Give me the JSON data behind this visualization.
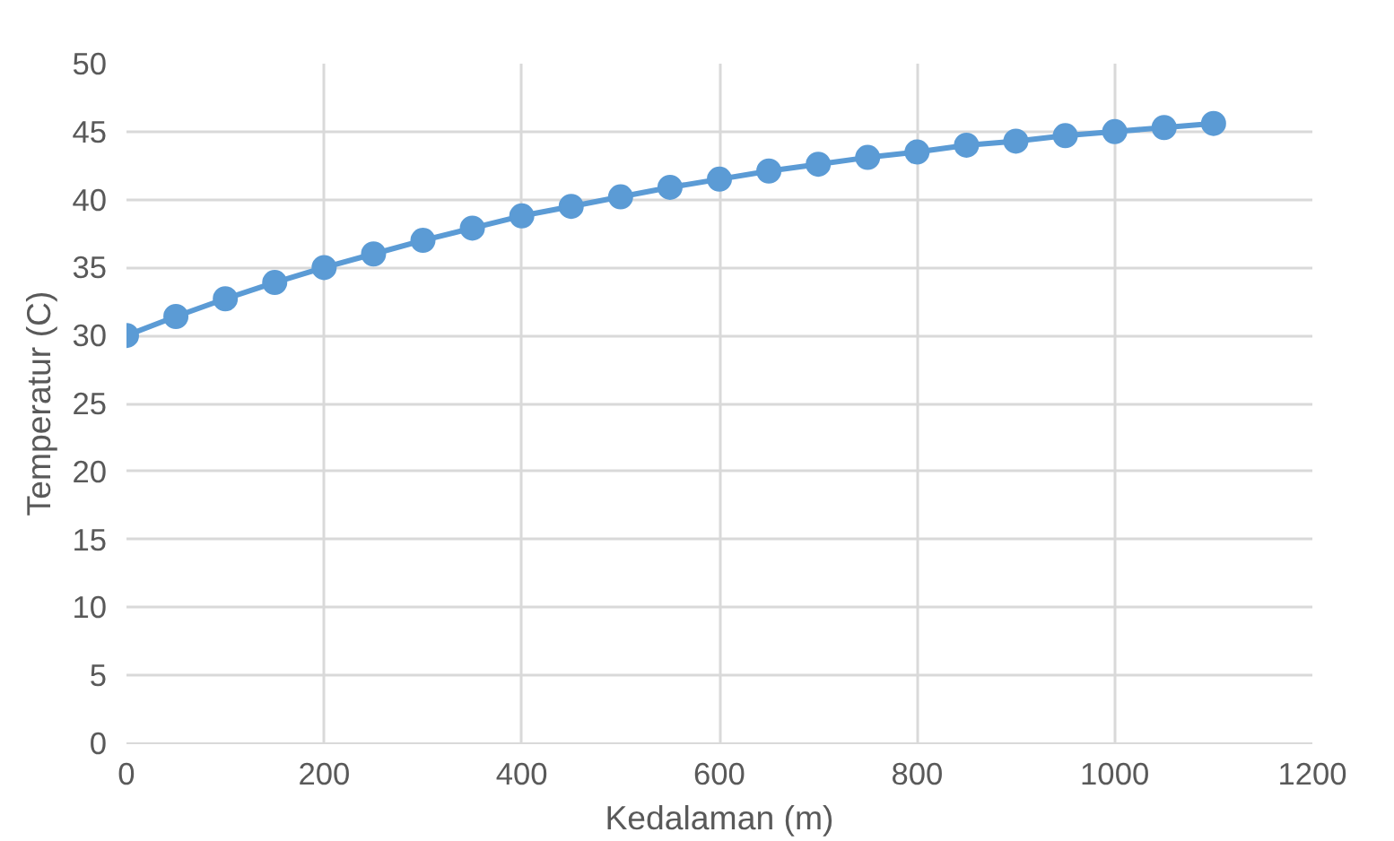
{
  "chart_data": {
    "type": "line",
    "xlabel": "Kedalaman (m)",
    "ylabel": "Temperatur (C)",
    "x": [
      0,
      50,
      100,
      150,
      200,
      250,
      300,
      350,
      400,
      450,
      500,
      550,
      600,
      650,
      700,
      750,
      800,
      850,
      900,
      950,
      1000,
      1050,
      1100
    ],
    "series": [
      {
        "color": "#5b9bd5",
        "values": [
          30,
          31.4,
          32.7,
          33.9,
          35.0,
          36.0,
          37.0,
          37.9,
          38.8,
          39.5,
          40.2,
          40.9,
          41.5,
          42.1,
          42.6,
          43.1,
          43.5,
          44.0,
          44.3,
          44.7,
          45.0,
          45.3,
          45.6
        ]
      }
    ],
    "xlim": [
      0,
      1200
    ],
    "xticks": [
      0,
      200,
      400,
      600,
      800,
      1000,
      1200
    ],
    "ylim": [
      0,
      50
    ],
    "yticks": [
      0,
      5,
      10,
      15,
      20,
      25,
      30,
      35,
      40,
      45,
      50
    ],
    "grid": true,
    "marker": "circle",
    "line_style": "solid"
  }
}
